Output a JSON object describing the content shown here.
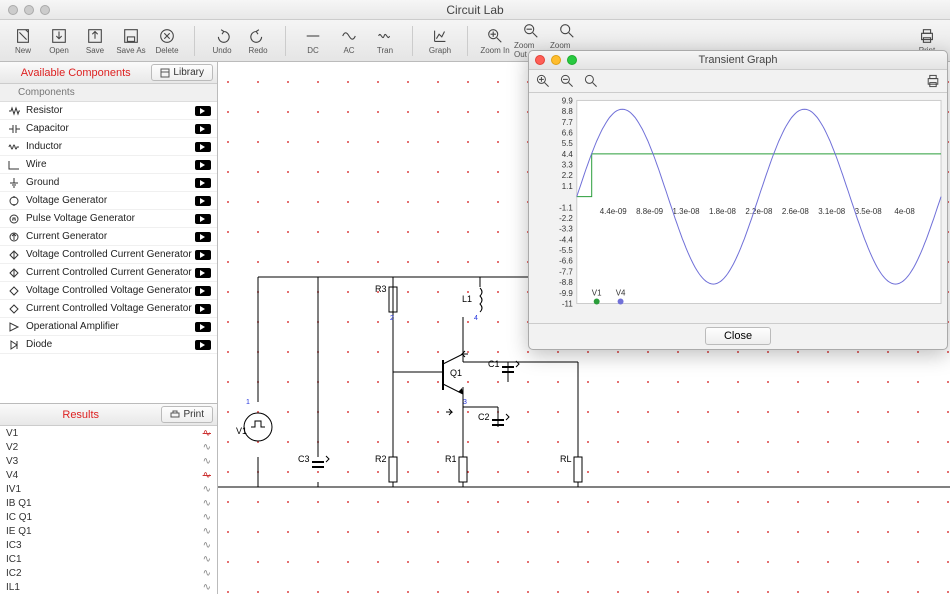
{
  "app_title": "Circuit Lab",
  "toolbar": {
    "new": "New",
    "open": "Open",
    "save": "Save",
    "save_as": "Save As",
    "delete": "Delete",
    "undo": "Undo",
    "redo": "Redo",
    "dc": "DC",
    "ac": "AC",
    "tran": "Tran",
    "graph": "Graph",
    "zoom_in": "Zoom In",
    "zoom_out": "Zoom Out",
    "zoom_reset": "Zoom Reset",
    "print": "Print"
  },
  "components_panel": {
    "title": "Available Components",
    "library_btn": "Library",
    "group_label": "Components",
    "items": [
      "Resistor",
      "Capacitor",
      "Inductor",
      "Wire",
      "Ground",
      "Voltage Generator",
      "Pulse Voltage Generator",
      "Current Generator",
      "Voltage Controlled Current Generator",
      "Current Controlled Current Generator",
      "Voltage Controlled Voltage Generator",
      "Current Controlled Voltage Generator",
      "Operational Amplifier",
      "Diode"
    ]
  },
  "results_panel": {
    "title": "Results",
    "print_btn": "Print",
    "items": [
      {
        "name": "V1",
        "status": "fail"
      },
      {
        "name": "V2",
        "status": "ok"
      },
      {
        "name": "V3",
        "status": "ok"
      },
      {
        "name": "V4",
        "status": "fail"
      },
      {
        "name": "IV1",
        "status": "ok"
      },
      {
        "name": "IB Q1",
        "status": "ok"
      },
      {
        "name": "IC Q1",
        "status": "ok"
      },
      {
        "name": "IE Q1",
        "status": "ok"
      },
      {
        "name": "IC3",
        "status": "ok"
      },
      {
        "name": "IC1",
        "status": "ok"
      },
      {
        "name": "IC2",
        "status": "ok"
      },
      {
        "name": "IL1",
        "status": "ok"
      }
    ]
  },
  "canvas": {
    "grid_color": "#d44",
    "grid_spacing": 30,
    "grid_offset_x": 10,
    "grid_offset_y": 20,
    "wire_color": "#000",
    "label_color": "#000",
    "pin_color": "#23d",
    "elements": {
      "V1": "V1",
      "R3": "R3",
      "L1": "L1",
      "Q1": "Q1",
      "C1": "C1",
      "C2": "C2",
      "C3": "C3",
      "R2": "R2",
      "R1": "R1",
      "RL": "RL"
    }
  },
  "graph_window": {
    "title": "Transient Graph",
    "close_btn": "Close",
    "y_ticks": [
      "9.9",
      "8.8",
      "7.7",
      "6.6",
      "5.5",
      "4.4",
      "3.3",
      "2.2",
      "1.1",
      "",
      "-1.1",
      "-2.2",
      "-3.3",
      "-4.4",
      "-5.5",
      "-6.6",
      "-7.7",
      "-8.8",
      "-9.9",
      "-11"
    ],
    "x_ticks": [
      "4.4e-09",
      "8.8e-09",
      "1.3e-08",
      "1.8e-08",
      "2.2e-08",
      "2.6e-08",
      "3.1e-08",
      "3.5e-08",
      "4e-08"
    ],
    "series": [
      {
        "name": "V1",
        "color": "#2a9d3a",
        "type": "step",
        "y_level": 4.4
      },
      {
        "name": "V4",
        "color": "#7070d8",
        "type": "sine",
        "amplitude": 9.0,
        "offset": 0,
        "cycles": 2
      }
    ],
    "axis_color": "#888",
    "bg": "#ffffff"
  }
}
